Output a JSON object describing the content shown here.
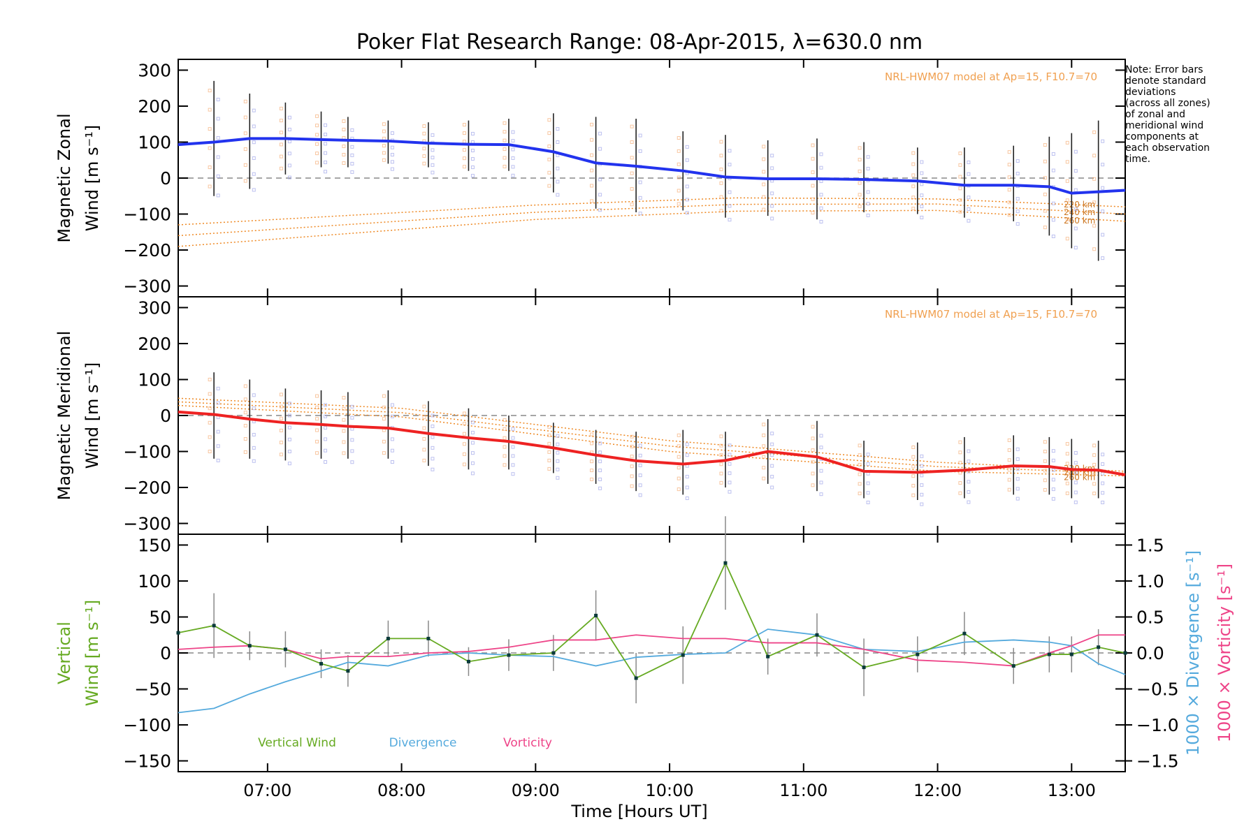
{
  "title": "Poker Flat Research Range: 08-Apr-2015, λ=630.0 nm",
  "note": [
    "Note: Error bars",
    "denote standard",
    "deviations",
    "(across all zones)",
    "of zonal and",
    "meridional wind",
    "components at",
    "each observation",
    "time."
  ],
  "colors": {
    "zonal": "#2233ee",
    "meridional": "#ee2222",
    "model": "#ee8822",
    "vertical": "#66aa22",
    "divergence": "#55aadd",
    "vorticity": "#ee4488",
    "errorbar": "#222222",
    "dashed": "#888888",
    "scatter_blue": "#9fa5e8",
    "scatter_orange": "#f4a060"
  },
  "x_ticks": [
    "07:00",
    "08:00",
    "09:00",
    "10:00",
    "11:00",
    "12:00",
    "13:00"
  ],
  "x_label": "Time [Hours UT]",
  "chart_data": [
    {
      "type": "line",
      "name": "zonal",
      "ylabel_line1": "Magnetic Zonal",
      "ylabel_line2": "Wind [m s⁻¹]",
      "xlim": [
        6.3333,
        13.4
      ],
      "ylim": [
        -330,
        330
      ],
      "yticks": [
        "300",
        "200",
        "100",
        "0",
        "−100",
        "−200",
        "−300"
      ],
      "ytick_values": [
        300,
        200,
        100,
        0,
        -100,
        -200,
        -300
      ],
      "model_label": "NRL-HWM07 model at Ap=15, F10.7=70",
      "model_curve_labels": [
        "220 km",
        "240 km",
        "260 km"
      ],
      "x": [
        6.333,
        6.6,
        6.8667,
        7.1333,
        7.4,
        7.6,
        7.9,
        8.2,
        8.5,
        8.8,
        9.1333,
        9.45,
        9.75,
        10.1,
        10.4167,
        10.7333,
        11.1,
        11.45,
        11.85,
        12.2,
        12.5667,
        12.8333,
        13.0,
        13.2,
        13.4
      ],
      "values": [
        93,
        100,
        110,
        110,
        107,
        105,
        103,
        97,
        94,
        93,
        73,
        42,
        33,
        20,
        3,
        -2,
        -2,
        -4,
        -8,
        -20,
        -20,
        -24,
        -42,
        -38,
        -34
      ],
      "error_low": [
        0,
        -50,
        -30,
        10,
        30,
        30,
        40,
        30,
        20,
        20,
        -40,
        -85,
        -95,
        -90,
        -110,
        -105,
        -115,
        -95,
        -100,
        -110,
        -120,
        -160,
        -195,
        -230,
        0
      ],
      "error_high": [
        0,
        270,
        235,
        210,
        185,
        170,
        160,
        155,
        160,
        165,
        180,
        170,
        165,
        130,
        120,
        105,
        110,
        100,
        85,
        85,
        90,
        115,
        125,
        160,
        0
      ],
      "model": [
        {
          "x": [
            6.3333,
            9.0,
            10.5,
            12.0,
            13.4
          ],
          "values": [
            -130,
            -75,
            -55,
            -58,
            -80
          ]
        },
        {
          "x": [
            6.3333,
            9.0,
            10.5,
            12.0,
            13.4
          ],
          "values": [
            -160,
            -95,
            -73,
            -72,
            -100
          ]
        },
        {
          "x": [
            6.3333,
            9.0,
            10.5,
            12.0,
            13.4
          ],
          "values": [
            -190,
            -115,
            -92,
            -90,
            -120
          ]
        }
      ]
    },
    {
      "type": "line",
      "name": "meridional",
      "ylabel_line1": "Magnetic Meridional",
      "ylabel_line2": "Wind [m s⁻¹]",
      "xlim": [
        6.3333,
        13.4
      ],
      "ylim": [
        -330,
        330
      ],
      "yticks": [
        "300",
        "200",
        "100",
        "0",
        "−100",
        "−200",
        "−300"
      ],
      "ytick_values": [
        300,
        200,
        100,
        0,
        -100,
        -200,
        -300
      ],
      "model_label": "NRL-HWM07 model at Ap=15, F10.7=70",
      "model_curve_labels": [
        "220 km",
        "240 km",
        "260 km"
      ],
      "x": [
        6.333,
        6.6,
        6.8667,
        7.1333,
        7.4,
        7.6,
        7.9,
        8.2,
        8.5,
        8.8,
        9.1333,
        9.45,
        9.75,
        10.1,
        10.4167,
        10.7333,
        11.1,
        11.45,
        11.85,
        12.2,
        12.5667,
        12.8333,
        13.0,
        13.2,
        13.4
      ],
      "values": [
        10,
        3,
        -10,
        -20,
        -25,
        -30,
        -35,
        -50,
        -62,
        -72,
        -90,
        -110,
        -126,
        -135,
        -125,
        -100,
        -115,
        -155,
        -158,
        -152,
        -140,
        -142,
        -150,
        -152,
        -165
      ],
      "error_low": [
        0,
        -120,
        -120,
        -125,
        -120,
        -120,
        -120,
        -140,
        -150,
        -150,
        -160,
        -190,
        -210,
        -220,
        -200,
        -190,
        -210,
        -230,
        -235,
        -230,
        -220,
        -220,
        -230,
        -230,
        0
      ],
      "error_high": [
        0,
        120,
        100,
        75,
        70,
        65,
        70,
        40,
        20,
        0,
        -20,
        -40,
        -45,
        -40,
        -45,
        -10,
        -15,
        -70,
        -75,
        -60,
        -55,
        -60,
        -65,
        -70,
        0
      ],
      "model": [
        {
          "x": [
            6.3333,
            8.0,
            10.0,
            12.0,
            13.4
          ],
          "values": [
            48,
            20,
            -70,
            -130,
            -155
          ]
        },
        {
          "x": [
            6.3333,
            8.0,
            10.0,
            12.0,
            13.4
          ],
          "values": [
            38,
            8,
            -85,
            -142,
            -160
          ]
        },
        {
          "x": [
            6.3333,
            8.0,
            10.0,
            12.0,
            13.4
          ],
          "values": [
            28,
            -4,
            -100,
            -155,
            -168
          ]
        }
      ]
    },
    {
      "type": "line",
      "name": "vertical",
      "ylabel_line1": "Vertical",
      "ylabel_line2": "Wind [m s⁻¹]",
      "ylabel_right1": "1000 × Divergence [s⁻¹]",
      "ylabel_right2": "1000 × Vorticity [s⁻¹]",
      "xlim": [
        6.3333,
        13.4
      ],
      "ylim": [
        -165,
        165
      ],
      "yticks": [
        "150",
        "100",
        "50",
        "0",
        "−50",
        "−100",
        "−150"
      ],
      "ytick_values": [
        150,
        100,
        50,
        0,
        -50,
        -100,
        -150
      ],
      "ylim_right": [
        -1.65,
        1.65
      ],
      "yticks_right": [
        "1.5",
        "1.0",
        "0.5",
        "0.0",
        "−0.5",
        "−1.0",
        "−1.5"
      ],
      "ytick_values_right": [
        1.5,
        1.0,
        0.5,
        0.0,
        -0.5,
        -1.0,
        -1.5
      ],
      "legend": [
        "Vertical Wind",
        "Divergence",
        "Vorticity"
      ],
      "series": [
        {
          "name": "Vertical Wind",
          "x": [
            6.3333,
            6.6,
            6.8667,
            7.1333,
            7.4,
            7.6,
            7.9,
            8.2,
            8.5,
            8.8,
            9.1333,
            9.45,
            9.75,
            10.1,
            10.4167,
            10.7333,
            11.1,
            11.45,
            11.85,
            12.2,
            12.5667,
            12.8333,
            13.0,
            13.2,
            13.4
          ],
          "values": [
            28,
            38,
            10,
            5,
            -15,
            -25,
            20,
            20,
            -12,
            -3,
            0,
            52,
            -35,
            -3,
            125,
            -5,
            25,
            -20,
            -2,
            27,
            -18,
            -2,
            -2,
            8,
            0
          ],
          "error": [
            0,
            45,
            20,
            25,
            20,
            22,
            25,
            25,
            20,
            22,
            25,
            35,
            35,
            40,
            65,
            25,
            30,
            40,
            25,
            30,
            25,
            25,
            25,
            25,
            0
          ]
        },
        {
          "name": "Divergence",
          "x": [
            6.3333,
            6.6,
            6.8667,
            7.1333,
            7.4,
            7.6,
            7.9,
            8.2,
            8.5,
            8.8,
            9.1333,
            9.45,
            9.75,
            10.1,
            10.4167,
            10.7333,
            11.1,
            11.45,
            11.85,
            12.2,
            12.5667,
            12.8333,
            13.0,
            13.2,
            13.4
          ],
          "values": [
            -0.83,
            -0.77,
            -0.57,
            -0.4,
            -0.25,
            -0.13,
            -0.18,
            -0.03,
            0.0,
            -0.03,
            -0.05,
            -0.18,
            -0.06,
            -0.02,
            0.0,
            0.33,
            0.25,
            0.05,
            0.02,
            0.15,
            0.18,
            0.15,
            0.1,
            -0.15,
            -0.3
          ]
        },
        {
          "name": "Vorticity",
          "x": [
            6.3333,
            6.6,
            6.8667,
            7.1333,
            7.4,
            7.6,
            7.9,
            8.2,
            8.5,
            8.8,
            9.1333,
            9.45,
            9.75,
            10.1,
            10.4167,
            10.7333,
            11.1,
            11.45,
            11.85,
            12.2,
            12.5667,
            12.8333,
            13.0,
            13.2,
            13.4
          ],
          "values": [
            0.05,
            0.08,
            0.1,
            0.05,
            -0.08,
            -0.05,
            -0.05,
            0.0,
            0.02,
            0.08,
            0.18,
            0.18,
            0.25,
            0.2,
            0.2,
            0.14,
            0.14,
            0.05,
            -0.1,
            -0.13,
            -0.18,
            0.0,
            0.1,
            0.25,
            0.25
          ]
        }
      ]
    }
  ]
}
